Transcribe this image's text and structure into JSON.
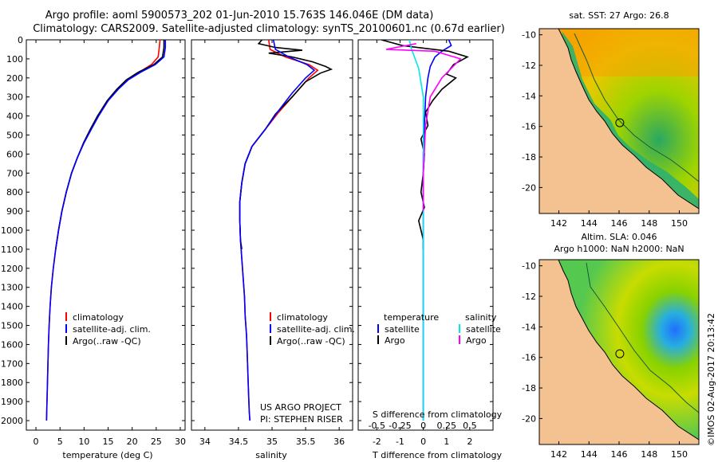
{
  "header": {
    "title_line1": "Argo profile: aoml 5900573_202 01-Jun-2010 15.763S 146.046E (DM data)",
    "title_line2": "Climatology: CARS2009. Satellite-adjusted climatology: synTS_20100601.nc (0.67d earlier)"
  },
  "chart_data": [
    {
      "id": "temperature",
      "type": "line",
      "xlabel": "temperature (deg C)",
      "ylabel": "",
      "xlim": [
        -2,
        31
      ],
      "ylim": [
        2050,
        0
      ],
      "xticks": [
        "0",
        "5",
        "10",
        "15",
        "20",
        "25",
        "30"
      ],
      "yticks": [
        "0",
        "100",
        "200",
        "300",
        "400",
        "500",
        "600",
        "700",
        "800",
        "900",
        "1000",
        "1100",
        "1200",
        "1300",
        "1400",
        "1500",
        "1600",
        "1700",
        "1800",
        "1900",
        "2000"
      ],
      "legend": [
        "climatology",
        "satellite-adj. clim.",
        "Argo(..raw -QC)"
      ],
      "legend_colors": [
        "#ff0000",
        "#0000ff",
        "#000000"
      ],
      "series": [
        {
          "name": "climatology",
          "color": "#ff0000",
          "points": [
            [
              25.8,
              0
            ],
            [
              25.6,
              50
            ],
            [
              25.4,
              90
            ],
            [
              24,
              130
            ],
            [
              21.5,
              170
            ],
            [
              19,
              210
            ],
            [
              17,
              260
            ],
            [
              15,
              320
            ],
            [
              13,
              400
            ],
            [
              11.5,
              470
            ],
            [
              10,
              540
            ],
            [
              8.6,
              620
            ],
            [
              7.4,
              700
            ],
            [
              6.3,
              800
            ],
            [
              5.4,
              900
            ],
            [
              4.7,
              1000
            ],
            [
              4.1,
              1100
            ],
            [
              3.6,
              1200
            ],
            [
              3.2,
              1300
            ],
            [
              2.95,
              1400
            ],
            [
              2.75,
              1500
            ],
            [
              2.6,
              1600
            ],
            [
              2.5,
              1700
            ],
            [
              2.4,
              1800
            ],
            [
              2.3,
              1900
            ],
            [
              2.2,
              2000
            ]
          ]
        },
        {
          "name": "Argo(..raw -QC)",
          "color": "#000000",
          "points": [
            [
              26.6,
              0
            ],
            [
              26.6,
              40
            ],
            [
              26.3,
              90
            ],
            [
              24.5,
              130
            ],
            [
              21.3,
              170
            ],
            [
              18.8,
              210
            ],
            [
              16.8,
              260
            ],
            [
              14.8,
              320
            ],
            [
              12.8,
              400
            ],
            [
              11.3,
              470
            ],
            [
              9.9,
              540
            ],
            [
              8.6,
              620
            ],
            [
              7.4,
              700
            ],
            [
              6.3,
              800
            ],
            [
              5.4,
              900
            ],
            [
              4.7,
              1000
            ],
            [
              4.1,
              1100
            ]
          ]
        },
        {
          "name": "satellite-adj. clim.",
          "color": "#0000ff",
          "points": [
            [
              26.9,
              0
            ],
            [
              26.9,
              40
            ],
            [
              26.6,
              90
            ],
            [
              24.8,
              130
            ],
            [
              21.8,
              170
            ],
            [
              19.2,
              210
            ],
            [
              17.1,
              260
            ],
            [
              15,
              320
            ],
            [
              13,
              400
            ],
            [
              11.5,
              470
            ],
            [
              10,
              540
            ],
            [
              8.6,
              620
            ],
            [
              7.4,
              700
            ],
            [
              6.3,
              800
            ],
            [
              5.4,
              900
            ],
            [
              4.7,
              1000
            ],
            [
              4.1,
              1100
            ],
            [
              3.6,
              1200
            ],
            [
              3.2,
              1300
            ],
            [
              2.95,
              1400
            ],
            [
              2.75,
              1500
            ],
            [
              2.6,
              1600
            ],
            [
              2.5,
              1700
            ],
            [
              2.4,
              1800
            ],
            [
              2.3,
              1900
            ],
            [
              2.2,
              2000
            ]
          ]
        }
      ]
    },
    {
      "id": "salinity",
      "type": "line",
      "xlabel": "salinity",
      "xlim": [
        33.8,
        36.2
      ],
      "ylim": [
        2050,
        0
      ],
      "xticks": [
        "34",
        "34.5",
        "35",
        "35.5",
        "36"
      ],
      "legend": [
        "climatology",
        "satellite-adj. clim.",
        "Argo(..raw -QC)"
      ],
      "legend_colors": [
        "#ff0000",
        "#0000ff",
        "#000000"
      ],
      "annotation": [
        "US ARGO PROJECT",
        "PI: STEPHEN RISER"
      ],
      "series": [
        {
          "name": "climatology",
          "color": "#ff0000",
          "points": [
            [
              34.95,
              0
            ],
            [
              34.97,
              50
            ],
            [
              35.2,
              90
            ],
            [
              35.55,
              130
            ],
            [
              35.68,
              160
            ],
            [
              35.55,
              200
            ],
            [
              35.35,
              280
            ],
            [
              35.1,
              380
            ],
            [
              34.9,
              470
            ],
            [
              34.7,
              560
            ],
            [
              34.6,
              650
            ],
            [
              34.55,
              750
            ],
            [
              34.52,
              850
            ],
            [
              34.52,
              950
            ],
            [
              34.53,
              1050
            ],
            [
              34.55,
              1150
            ],
            [
              34.57,
              1250
            ],
            [
              34.59,
              1350
            ],
            [
              34.6,
              1450
            ],
            [
              34.62,
              1550
            ],
            [
              34.63,
              1650
            ],
            [
              34.64,
              1750
            ],
            [
              34.65,
              1850
            ],
            [
              34.66,
              1950
            ],
            [
              34.67,
              2000
            ]
          ]
        },
        {
          "name": "Argo(..raw -QC)",
          "color": "#000000",
          "points": [
            [
              34.85,
              0
            ],
            [
              34.8,
              20
            ],
            [
              35.05,
              40
            ],
            [
              35.45,
              55
            ],
            [
              34.95,
              70
            ],
            [
              35.3,
              90
            ],
            [
              35.6,
              115
            ],
            [
              35.8,
              140
            ],
            [
              35.88,
              155
            ],
            [
              35.72,
              175
            ],
            [
              35.5,
              220
            ],
            [
              35.3,
              300
            ],
            [
              35.05,
              390
            ],
            [
              34.9,
              470
            ],
            [
              34.7,
              560
            ],
            [
              34.6,
              650
            ],
            [
              34.55,
              750
            ],
            [
              34.52,
              850
            ],
            [
              34.52,
              950
            ],
            [
              34.53,
              1050
            ],
            [
              34.55,
              1100
            ]
          ]
        },
        {
          "name": "satellite-adj. clim.",
          "color": "#0000ff",
          "points": [
            [
              35.02,
              0
            ],
            [
              35.05,
              50
            ],
            [
              35.25,
              90
            ],
            [
              35.52,
              130
            ],
            [
              35.63,
              160
            ],
            [
              35.5,
              200
            ],
            [
              35.3,
              280
            ],
            [
              35.08,
              380
            ],
            [
              34.9,
              470
            ],
            [
              34.7,
              560
            ],
            [
              34.6,
              650
            ],
            [
              34.55,
              750
            ],
            [
              34.52,
              850
            ],
            [
              34.52,
              950
            ],
            [
              34.53,
              1050
            ],
            [
              34.55,
              1150
            ],
            [
              34.57,
              1250
            ],
            [
              34.59,
              1350
            ],
            [
              34.6,
              1450
            ],
            [
              34.62,
              1550
            ],
            [
              34.63,
              1650
            ],
            [
              34.64,
              1750
            ],
            [
              34.65,
              1850
            ],
            [
              34.66,
              1950
            ],
            [
              34.67,
              2000
            ]
          ]
        }
      ]
    },
    {
      "id": "differences",
      "type": "line",
      "xlabel": "T difference from climatology",
      "xlabel_top": "S difference from climatology",
      "xlim": [
        -2.8,
        3
      ],
      "ylim": [
        2050,
        0
      ],
      "xticks": [
        "-2",
        "-1",
        "0",
        "1",
        "2"
      ],
      "xticks_top": [
        "-0.5",
        "-0.25",
        "0",
        "0.25",
        "0.5"
      ],
      "legend_headers": [
        "temperature",
        "salinity"
      ],
      "legend": [
        "satellite",
        "Argo",
        "satellite",
        "Argo"
      ],
      "legend_colors": [
        "#0000ff",
        "#000000",
        "#00e5ee",
        "#ff00ff"
      ],
      "series": [
        {
          "name": "T satellite",
          "color": "#0000ff",
          "points": [
            [
              1.1,
              0
            ],
            [
              1.2,
              30
            ],
            [
              0.8,
              60
            ],
            [
              0.5,
              90
            ],
            [
              0.3,
              140
            ],
            [
              0.2,
              200
            ],
            [
              0.1,
              300
            ],
            [
              0.05,
              450
            ],
            [
              0,
              600
            ],
            [
              0,
              800
            ],
            [
              0,
              1000
            ],
            [
              0,
              1200
            ],
            [
              0,
              1500
            ],
            [
              0,
              1800
            ],
            [
              0,
              2000
            ]
          ]
        },
        {
          "name": "T Argo",
          "color": "#000000",
          "points": [
            [
              -1.8,
              0
            ],
            [
              -0.9,
              30
            ],
            [
              1.1,
              60
            ],
            [
              1.9,
              90
            ],
            [
              1.3,
              130
            ],
            [
              1,
              180
            ],
            [
              1.4,
              200
            ],
            [
              0.8,
              260
            ],
            [
              0.4,
              320
            ],
            [
              0.1,
              380
            ],
            [
              0.2,
              450
            ],
            [
              -0.1,
              520
            ],
            [
              0.05,
              600
            ],
            [
              0,
              700
            ],
            [
              -0.1,
              800
            ],
            [
              0.05,
              880
            ],
            [
              -0.2,
              950
            ],
            [
              0,
              1050
            ],
            [
              0,
              1100
            ]
          ]
        },
        {
          "name": "S satellite",
          "color": "#00e5ee",
          "points": [
            [
              -0.6,
              0
            ],
            [
              -0.5,
              50
            ],
            [
              -0.2,
              150
            ],
            [
              0,
              300
            ],
            [
              0,
              500
            ],
            [
              0,
              800
            ],
            [
              0,
              1100
            ],
            [
              0,
              1400
            ],
            [
              0,
              1700
            ],
            [
              0,
              2000
            ]
          ]
        },
        {
          "name": "S Argo",
          "color": "#ff00ff",
          "points": [
            [
              -0.3,
              20
            ],
            [
              -1.6,
              50
            ],
            [
              0.5,
              60
            ],
            [
              1.6,
              100
            ],
            [
              1.2,
              150
            ],
            [
              0.8,
              200
            ],
            [
              0.3,
              300
            ],
            [
              0.1,
              450
            ],
            [
              0,
              700
            ],
            [
              0,
              900
            ]
          ]
        }
      ]
    },
    {
      "id": "sst_map",
      "type": "heatmap",
      "title": "sat. SST: 27 Argo: 26.8",
      "xticks": [
        "142",
        "144",
        "146",
        "148",
        "150"
      ],
      "yticks": [
        "-10",
        "-12",
        "-14",
        "-16",
        "-18",
        "-20"
      ],
      "xlim": [
        140.7,
        151.3
      ],
      "ylim": [
        -21.7,
        -9.6
      ],
      "profile_location": [
        146.05,
        -15.76
      ]
    },
    {
      "id": "sla_map",
      "type": "heatmap",
      "title_line1": "Altim. SLA: 0.046",
      "title_line2": "Argo h1000: NaN h2000: NaN",
      "xticks": [
        "142",
        "144",
        "146",
        "148",
        "150"
      ],
      "yticks": [
        "-10",
        "-12",
        "-14",
        "-16",
        "-18",
        "-20"
      ],
      "xlim": [
        140.7,
        151.3
      ],
      "ylim": [
        -21.7,
        -9.6
      ],
      "profile_location": [
        146.05,
        -15.76
      ]
    }
  ],
  "footer": {
    "credit": "©IMOS 02-Aug-2017 20:13:42"
  },
  "colors": {
    "land": "#f4c290",
    "sst_high": "#f5a300",
    "sla_low": "#55c850"
  }
}
